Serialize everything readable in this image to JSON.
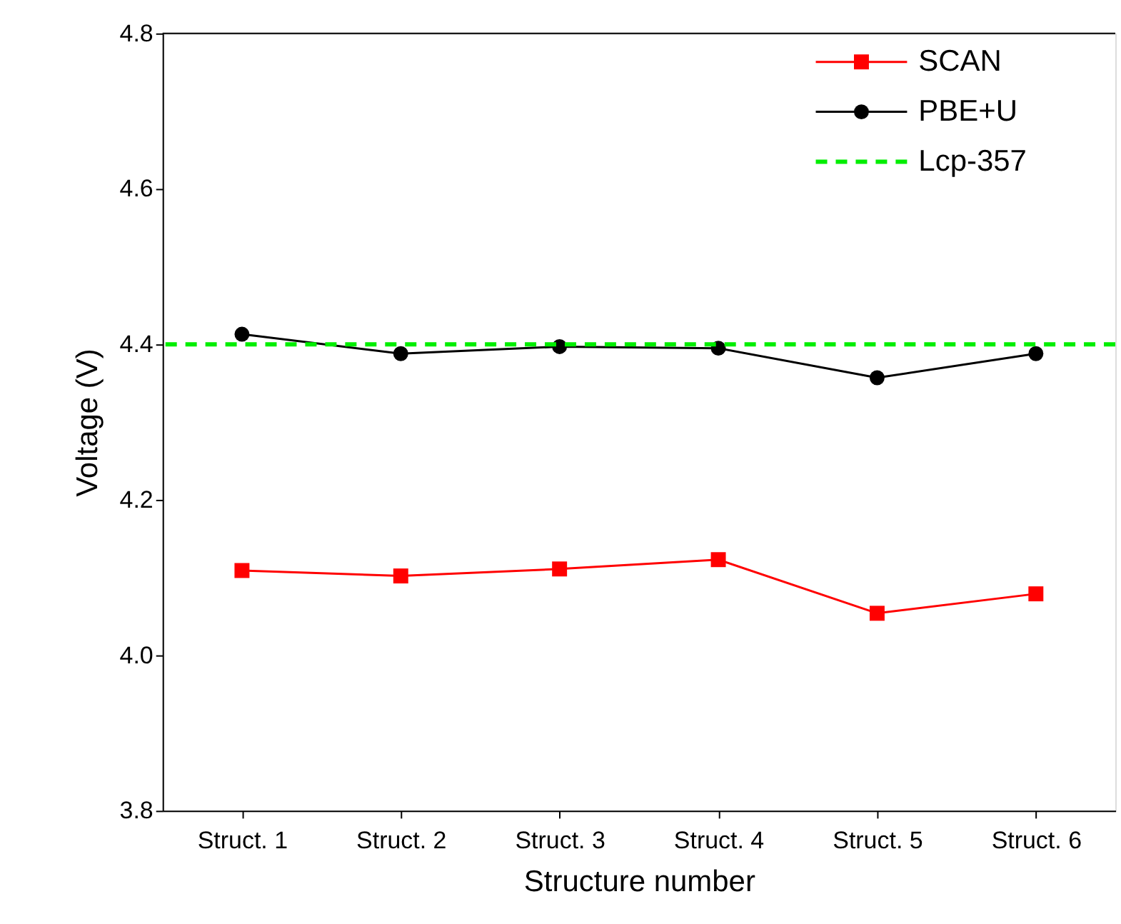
{
  "chart_data": {
    "type": "line",
    "xlabel": "Structure number",
    "ylabel": "Voltage (V)",
    "categories": [
      "Struct. 1",
      "Struct. 2",
      "Struct. 3",
      "Struct. 4",
      "Struct. 5",
      "Struct. 6"
    ],
    "series": [
      {
        "name": "SCAN",
        "color": "#ff0000",
        "marker": "square",
        "values": [
          4.109,
          4.102,
          4.111,
          4.123,
          4.054,
          4.079
        ]
      },
      {
        "name": "PBE+U",
        "color": "#000000",
        "marker": "circle",
        "values": [
          4.413,
          4.388,
          4.397,
          4.395,
          4.357,
          4.388
        ]
      }
    ],
    "ref_lines": [
      {
        "axis": "y",
        "value": 4.4,
        "label": "Lcp-357",
        "color": "#00ee00",
        "line_style": "dashed"
      }
    ],
    "ylim": [
      3.8,
      4.8
    ],
    "yticks": [
      3.8,
      {
        "value": 4.0,
        "label": "4.0"
      },
      4.2,
      4.4,
      4.6,
      4.8
    ],
    "grid": false,
    "legend": "top right"
  }
}
